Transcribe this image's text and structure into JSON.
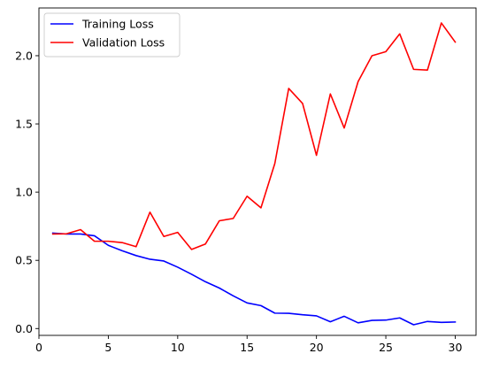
{
  "chart_data": {
    "type": "line",
    "title": "",
    "xlabel": "",
    "ylabel": "",
    "xlim": [
      0,
      31.5
    ],
    "ylim": [
      -0.05,
      2.35
    ],
    "xticks": [
      0,
      5,
      10,
      15,
      20,
      25,
      30
    ],
    "xtick_labels": [
      "0",
      "5",
      "10",
      "15",
      "20",
      "25",
      "30"
    ],
    "yticks": [
      0.0,
      0.5,
      1.0,
      1.5,
      2.0
    ],
    "ytick_labels": [
      "0.0",
      "0.5",
      "1.0",
      "1.5",
      "2.0"
    ],
    "grid": false,
    "legend": "top-left",
    "x": [
      1,
      2,
      3,
      4,
      5,
      6,
      7,
      8,
      9,
      10,
      11,
      12,
      13,
      14,
      15,
      16,
      17,
      18,
      19,
      20,
      21,
      22,
      23,
      24,
      25,
      26,
      27,
      28,
      29,
      30
    ],
    "series": [
      {
        "name": "Training Loss",
        "color": "#0000ff",
        "values": [
          0.7,
          0.693,
          0.693,
          0.68,
          0.61,
          0.57,
          0.535,
          0.508,
          0.495,
          0.45,
          0.398,
          0.343,
          0.297,
          0.24,
          0.188,
          0.168,
          0.113,
          0.112,
          0.101,
          0.093,
          0.05,
          0.09,
          0.042,
          0.06,
          0.062,
          0.078,
          0.028,
          0.052,
          0.045,
          0.048
        ]
      },
      {
        "name": "Validation Loss",
        "color": "#ff0000",
        "values": [
          0.693,
          0.695,
          0.725,
          0.64,
          0.64,
          0.63,
          0.6,
          0.853,
          0.675,
          0.705,
          0.58,
          0.62,
          0.79,
          0.807,
          0.97,
          0.885,
          1.21,
          1.76,
          1.65,
          1.27,
          1.72,
          1.47,
          1.81,
          2.0,
          2.03,
          2.16,
          1.9,
          1.895,
          2.24,
          2.1
        ]
      }
    ]
  }
}
